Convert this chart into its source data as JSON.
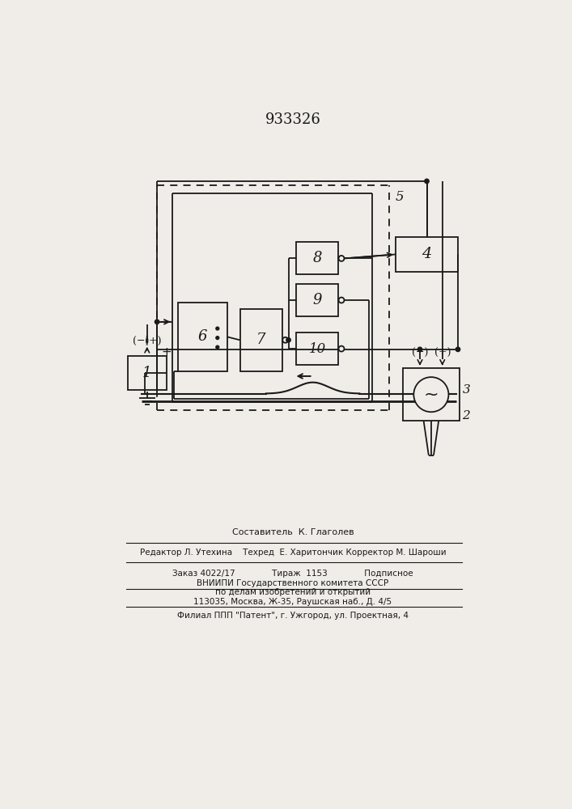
{
  "title": "933326",
  "bg_color": "#f0ede8",
  "line_color": "#1a1a1a",
  "text_color": "#1a1a1a",
  "footer_lines": [
    "Составитель  К. Глаголев",
    "Редактор Л. Утехина    Техред  Е. Харитончик Корректор М. Шароши",
    "Заказ 4022/17              Тираж  1153              Подписное",
    "ВНИИПИ Государственного комитета СССР",
    "по делам изобретений и открытий",
    "113035, Москва, Ж-35, Раушская наб., Д. 4/5",
    "Филиал ППП \"Патент\", г. Ужгород, ул. Проектная, 4"
  ]
}
